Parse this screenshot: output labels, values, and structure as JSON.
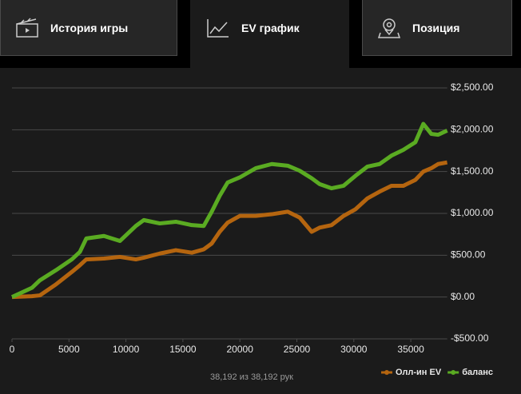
{
  "tabs": [
    "История игры",
    "EV график",
    "Позиция"
  ],
  "chart_data": {
    "type": "line",
    "x": [
      0,
      1750,
      2450,
      3850,
      5250,
      5960,
      6520,
      8070,
      9470,
      10870,
      11570,
      12970,
      14380,
      15780,
      16830,
      17530,
      18230,
      18930,
      19990,
      21400,
      22800,
      24200,
      25250,
      26300,
      27000,
      28050,
      29100,
      30150,
      31200,
      32260,
      33300,
      34350,
      35400,
      36100,
      36800,
      37400,
      38192
    ],
    "series": [
      {
        "name": "Олл-ин EV",
        "color": "#b5650f",
        "values": [
          0,
          10,
          20,
          150,
          300,
          380,
          450,
          460,
          480,
          450,
          470,
          520,
          560,
          530,
          570,
          640,
          780,
          890,
          970,
          970,
          990,
          1020,
          950,
          780,
          830,
          860,
          970,
          1050,
          1180,
          1260,
          1330,
          1330,
          1400,
          1500,
          1540,
          1590,
          1610
        ]
      },
      {
        "name": "баланс",
        "color": "#5aab22",
        "values": [
          0,
          110,
          200,
          320,
          450,
          540,
          700,
          730,
          670,
          850,
          920,
          880,
          900,
          860,
          850,
          1020,
          1210,
          1370,
          1430,
          1540,
          1590,
          1570,
          1510,
          1420,
          1350,
          1300,
          1330,
          1450,
          1560,
          1590,
          1690,
          1760,
          1850,
          2070,
          1950,
          1940,
          1990
        ]
      }
    ],
    "xlim": [
      0,
      38192
    ],
    "xticks": [
      0,
      5000,
      10000,
      15000,
      20000,
      25000,
      30000,
      35000
    ],
    "ylim": [
      -500,
      2500
    ],
    "yticks": [
      {
        "value": -500,
        "label": "-$500.00"
      },
      {
        "value": 0,
        "label": "$0.00"
      },
      {
        "value": 500,
        "label": "$500.00"
      },
      {
        "value": 1000,
        "label": "$1,000.00"
      },
      {
        "value": 1500,
        "label": "$1,500.00"
      },
      {
        "value": 2000,
        "label": "$2,000.00"
      },
      {
        "value": 2500,
        "label": "$2,500.00"
      }
    ],
    "grid": true,
    "footer": "38,192 из 38,192 рук"
  }
}
